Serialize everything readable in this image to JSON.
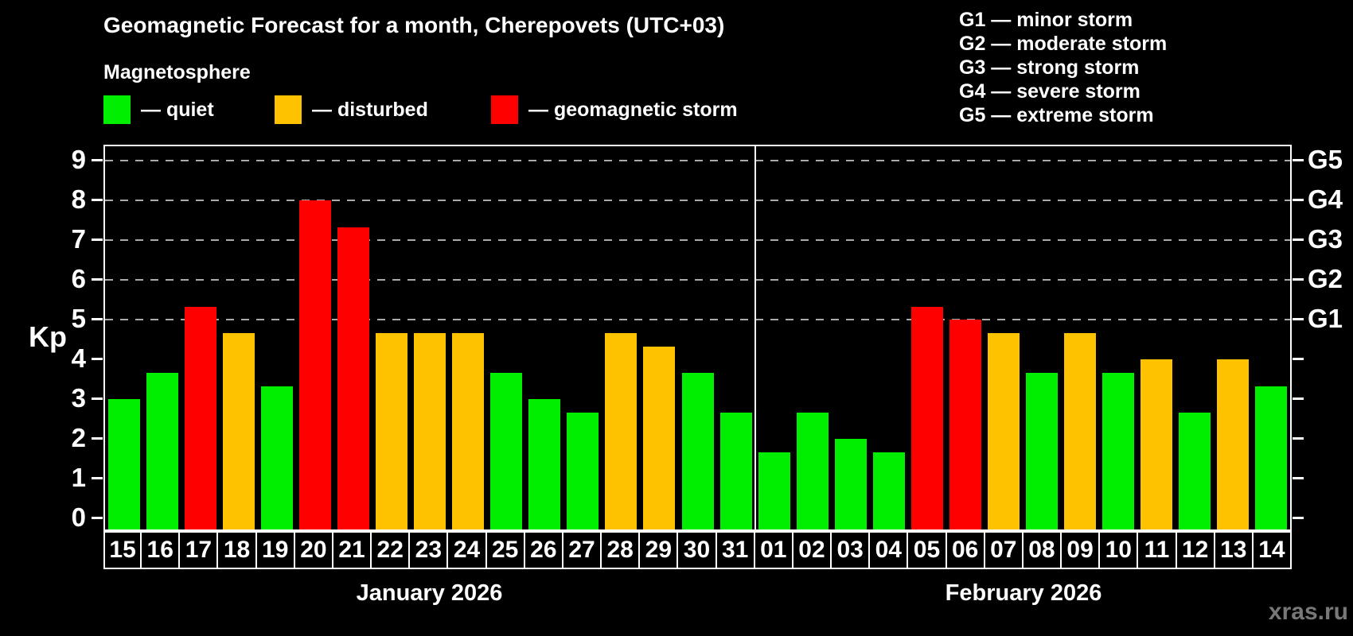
{
  "title": "Geomagnetic Forecast for a month, Cherepovets (UTC+03)",
  "subtitle": "Magnetosphere",
  "legend": {
    "items": [
      {
        "key": "quiet",
        "label": "— quiet",
        "color": "#00ee00"
      },
      {
        "key": "disturbed",
        "label": "— disturbed",
        "color": "#ffc200"
      },
      {
        "key": "storm",
        "label": "— geomagnetic storm",
        "color": "#ff0000"
      }
    ]
  },
  "storm_scale": [
    "G1 — minor storm",
    "G2 — moderate storm",
    "G3 — strong storm",
    "G4 — severe storm",
    "G5 — extreme storm"
  ],
  "watermark": "xras.ru",
  "chart_data": {
    "type": "bar",
    "title": "Geomagnetic Forecast for a month, Cherepovets (UTC+03)",
    "ylabel": "Kp",
    "ylim": [
      0,
      9
    ],
    "y_ticks": [
      0,
      1,
      2,
      3,
      4,
      5,
      6,
      7,
      8,
      9
    ],
    "gridlines_at_kp": [
      5,
      6,
      7,
      8,
      9
    ],
    "grid": "dashed, only at G-storm levels",
    "legend_position": "top-left",
    "right_axis_labels": [
      {
        "kp": 5,
        "label": "G1"
      },
      {
        "kp": 6,
        "label": "G2"
      },
      {
        "kp": 7,
        "label": "G3"
      },
      {
        "kp": 8,
        "label": "G4"
      },
      {
        "kp": 9,
        "label": "G5"
      }
    ],
    "status_colors": {
      "quiet": "#00ee00",
      "disturbed": "#ffc200",
      "storm": "#ff0000"
    },
    "months": [
      {
        "label": "January 2026",
        "days": [
          {
            "day": "15",
            "kp": 3.0,
            "status": "quiet"
          },
          {
            "day": "16",
            "kp": 3.67,
            "status": "quiet"
          },
          {
            "day": "17",
            "kp": 5.33,
            "status": "storm"
          },
          {
            "day": "18",
            "kp": 4.67,
            "status": "disturbed"
          },
          {
            "day": "19",
            "kp": 3.33,
            "status": "quiet"
          },
          {
            "day": "20",
            "kp": 8.0,
            "status": "storm"
          },
          {
            "day": "21",
            "kp": 7.33,
            "status": "storm"
          },
          {
            "day": "22",
            "kp": 4.67,
            "status": "disturbed"
          },
          {
            "day": "23",
            "kp": 4.67,
            "status": "disturbed"
          },
          {
            "day": "24",
            "kp": 4.67,
            "status": "disturbed"
          },
          {
            "day": "25",
            "kp": 3.67,
            "status": "quiet"
          },
          {
            "day": "26",
            "kp": 3.0,
            "status": "quiet"
          },
          {
            "day": "27",
            "kp": 2.67,
            "status": "quiet"
          },
          {
            "day": "28",
            "kp": 4.67,
            "status": "disturbed"
          },
          {
            "day": "29",
            "kp": 4.33,
            "status": "disturbed"
          },
          {
            "day": "30",
            "kp": 3.67,
            "status": "quiet"
          },
          {
            "day": "31",
            "kp": 2.67,
            "status": "quiet"
          }
        ]
      },
      {
        "label": "February 2026",
        "days": [
          {
            "day": "01",
            "kp": 1.67,
            "status": "quiet"
          },
          {
            "day": "02",
            "kp": 2.67,
            "status": "quiet"
          },
          {
            "day": "03",
            "kp": 2.0,
            "status": "quiet"
          },
          {
            "day": "04",
            "kp": 1.67,
            "status": "quiet"
          },
          {
            "day": "05",
            "kp": 5.33,
            "status": "storm"
          },
          {
            "day": "06",
            "kp": 5.0,
            "status": "storm"
          },
          {
            "day": "07",
            "kp": 4.67,
            "status": "disturbed"
          },
          {
            "day": "08",
            "kp": 3.67,
            "status": "quiet"
          },
          {
            "day": "09",
            "kp": 4.67,
            "status": "disturbed"
          },
          {
            "day": "10",
            "kp": 3.67,
            "status": "quiet"
          },
          {
            "day": "11",
            "kp": 4.0,
            "status": "disturbed"
          },
          {
            "day": "12",
            "kp": 2.67,
            "status": "quiet"
          },
          {
            "day": "13",
            "kp": 4.0,
            "status": "disturbed"
          },
          {
            "day": "14",
            "kp": 3.33,
            "status": "quiet"
          }
        ]
      }
    ]
  }
}
